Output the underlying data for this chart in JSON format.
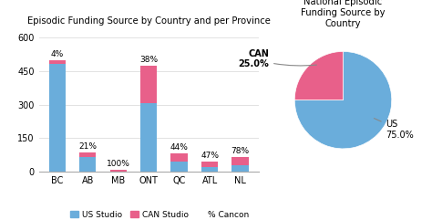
{
  "title_bar": "Episodic Funding Source by Country and per Province",
  "title_pie": "National Episodic\nFunding Source by\nCountry",
  "categories": [
    "BC",
    "AB",
    "MB",
    "ONT",
    "QC",
    "ATL",
    "NL"
  ],
  "us_studio": [
    480,
    65,
    0,
    305,
    45,
    20,
    30
  ],
  "can_studio": [
    20,
    20,
    10,
    170,
    35,
    25,
    35
  ],
  "pct_cancon": [
    4,
    21,
    100,
    38,
    44,
    47,
    78
  ],
  "us_color": "#6aaddb",
  "can_color": "#e8608a",
  "pie_us": 75.0,
  "pie_can": 25.0,
  "pie_colors": [
    "#6aaddb",
    "#e8608a"
  ],
  "ylim": [
    0,
    640
  ],
  "yticks": [
    0,
    150,
    300,
    450,
    600
  ],
  "legend_labels": [
    "US Studio",
    "CAN Studio",
    "% Cancon"
  ],
  "background": "#ffffff"
}
